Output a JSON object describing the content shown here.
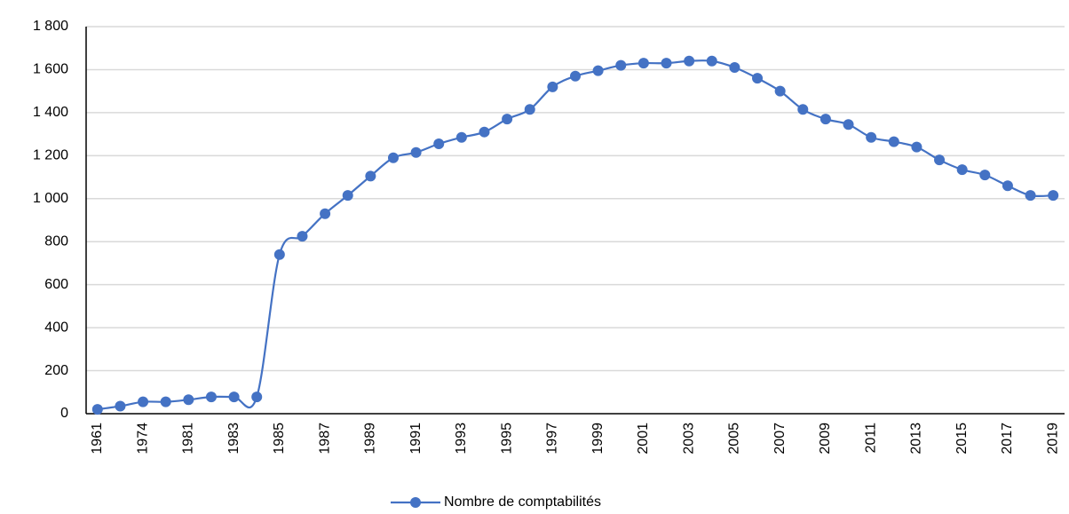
{
  "chart_data": {
    "type": "line",
    "categories": [
      "1961",
      null,
      "1974",
      null,
      "1981",
      null,
      "1983",
      null,
      "1985",
      null,
      "1987",
      null,
      "1989",
      null,
      "1991",
      null,
      "1993",
      null,
      "1995",
      null,
      "1997",
      null,
      "1999",
      null,
      "2001",
      null,
      "2003",
      null,
      "2005",
      null,
      "2007",
      null,
      "2009",
      null,
      "2011",
      null,
      "2013",
      null,
      "2015",
      null,
      "2017",
      null,
      "2019"
    ],
    "series": [
      {
        "name": "Nombre de comptabilités",
        "color": "#4472c4",
        "values": [
          20,
          35,
          55,
          55,
          65,
          78,
          78,
          78,
          740,
          825,
          930,
          1015,
          1105,
          1190,
          1215,
          1255,
          1285,
          1310,
          1370,
          1415,
          1520,
          1570,
          1595,
          1620,
          1630,
          1630,
          1640,
          1640,
          1610,
          1560,
          1500,
          1415,
          1370,
          1345,
          1285,
          1265,
          1240,
          1180,
          1135,
          1110,
          1060,
          1015,
          1015
        ]
      }
    ],
    "ylim": [
      0,
      1800
    ],
    "yticks": [
      0,
      200,
      400,
      600,
      800,
      {
        "value": 1000,
        "label": "1 000"
      },
      {
        "value": 1200,
        "label": "1 200"
      },
      {
        "value": 1400,
        "label": "1 400"
      },
      {
        "value": 1600,
        "label": "1 600"
      },
      {
        "value": 1800,
        "label": "1 800"
      }
    ],
    "grid": true,
    "legend": "bottom"
  }
}
